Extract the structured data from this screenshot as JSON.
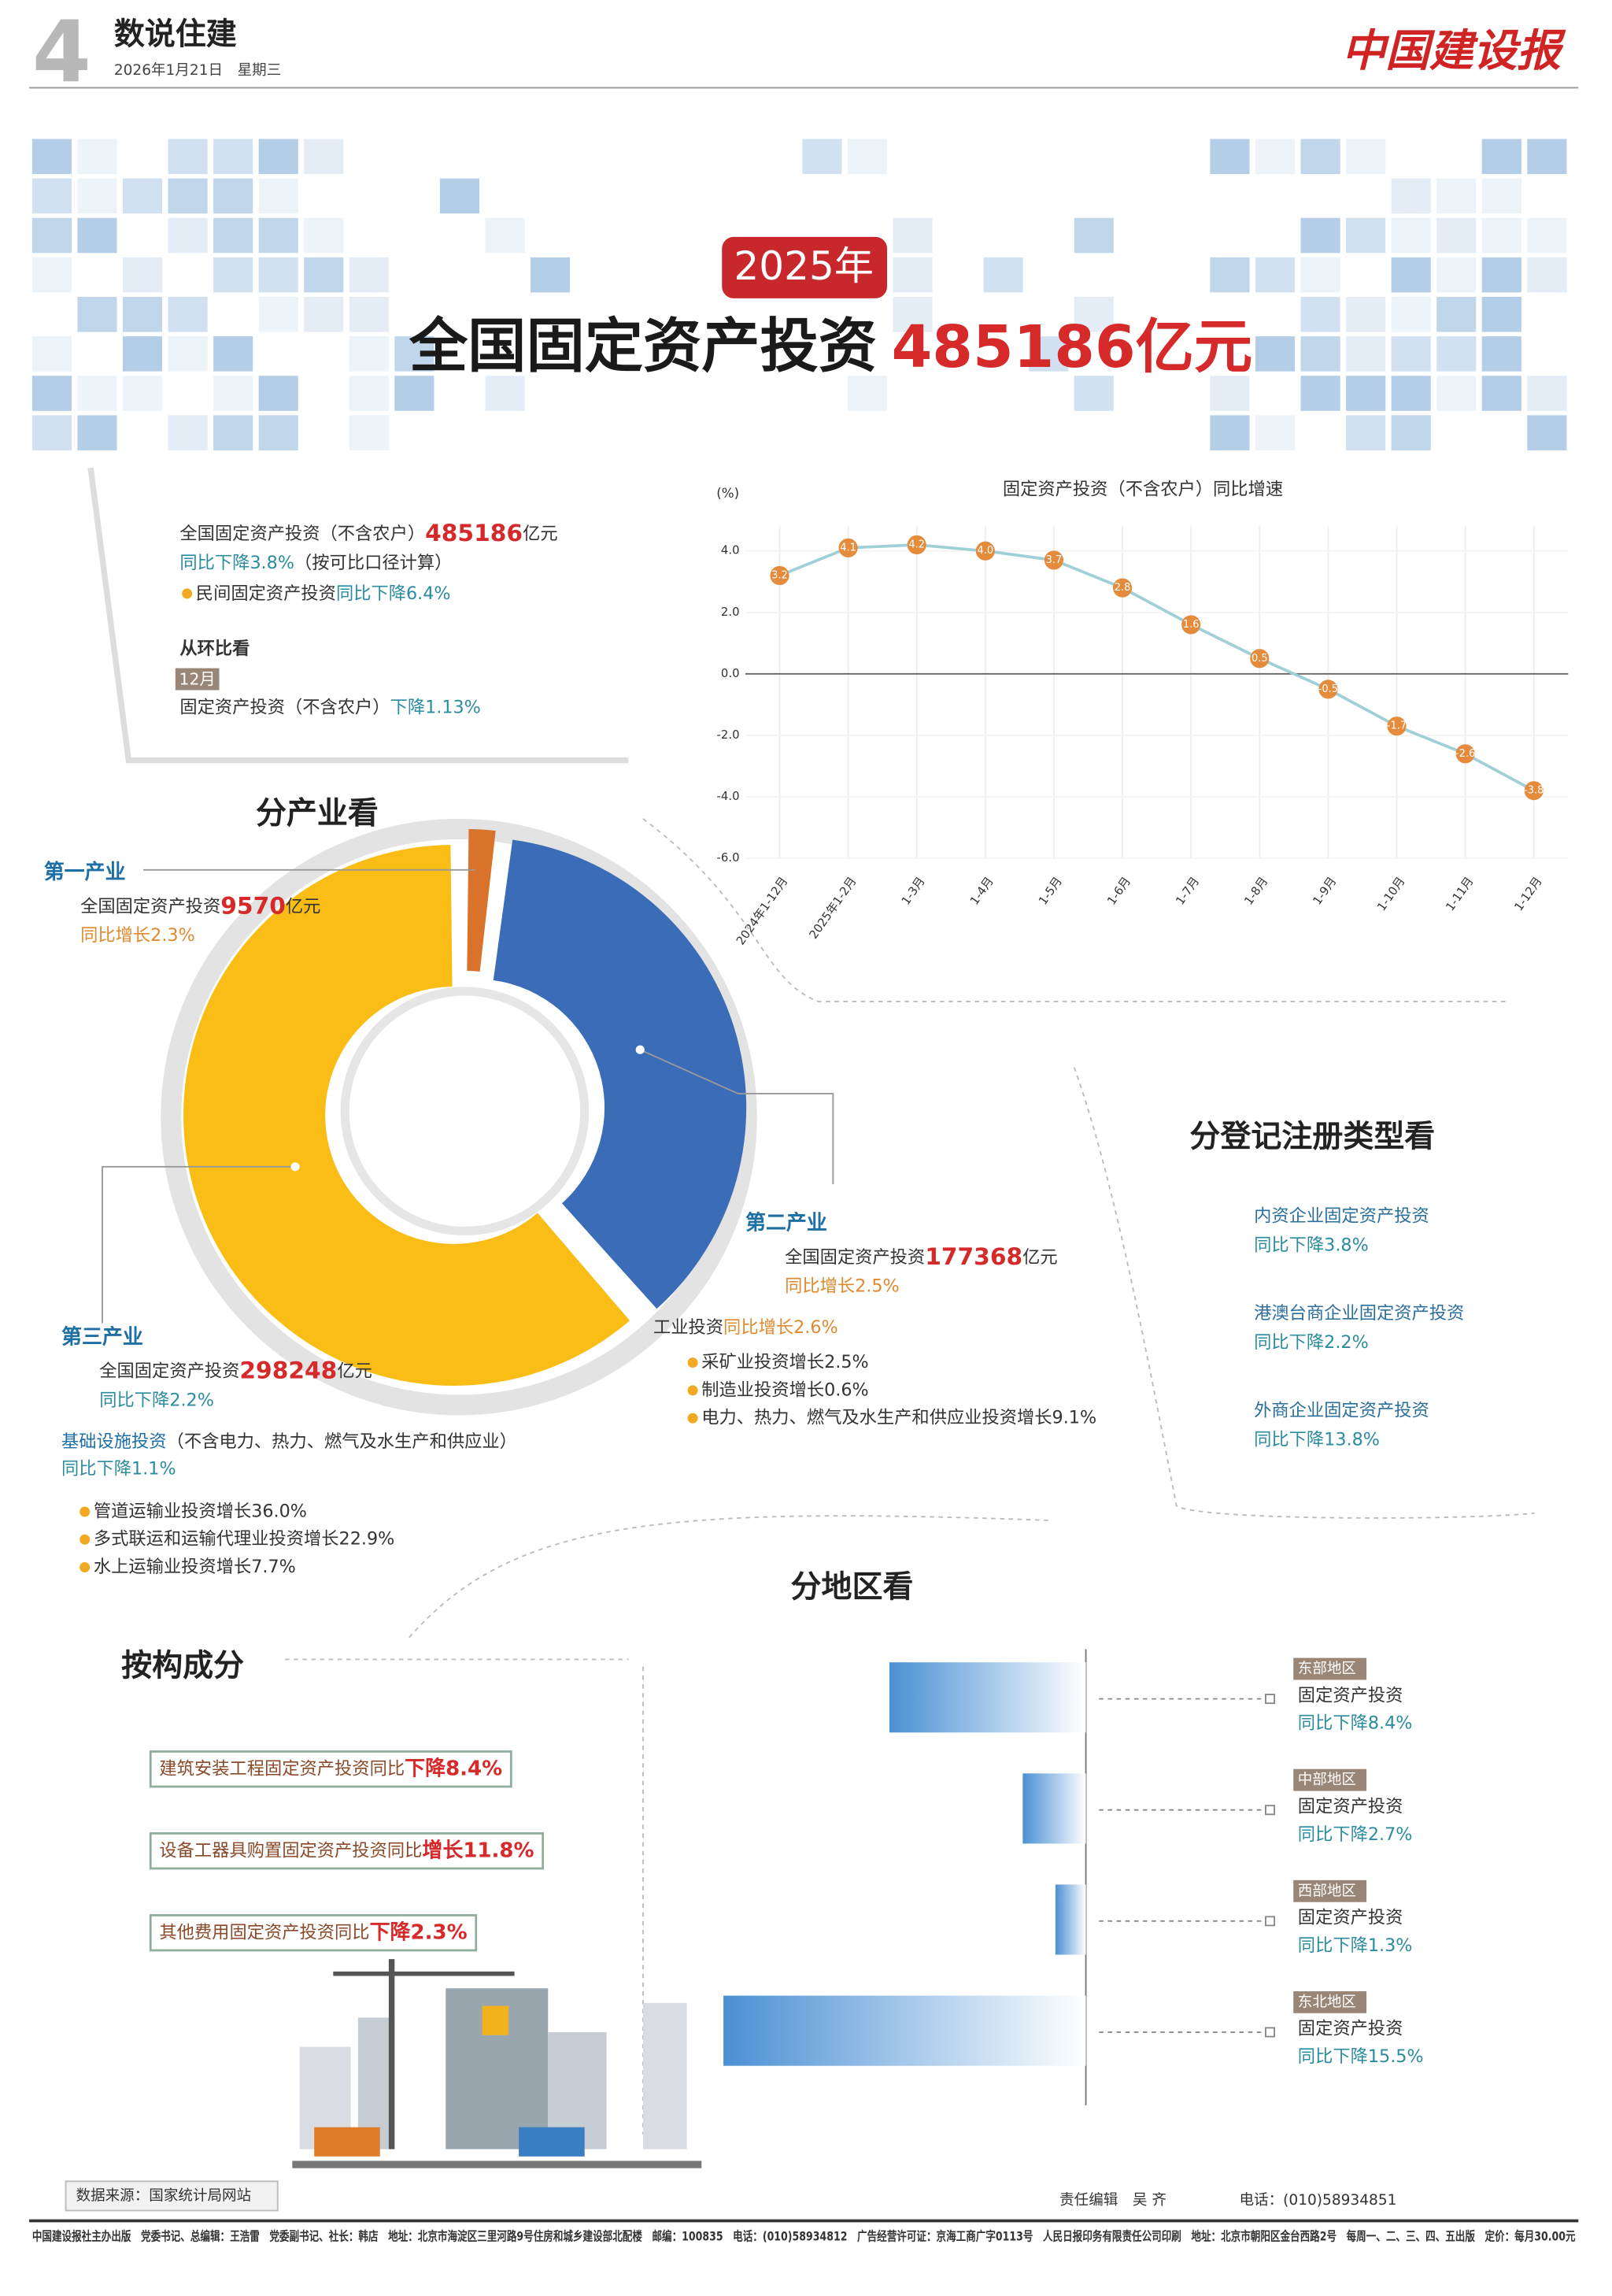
{
  "header": {
    "page_number": "4",
    "section": "数说住建",
    "date": "2026年1月21日",
    "weekday": "星期三",
    "masthead": "中国建设报"
  },
  "banner": {
    "year": "2025年",
    "title": "全国固定资产投资",
    "amount": "485186亿元"
  },
  "summary": {
    "total_label": "全国固定资产投资（不含农户）",
    "total_value": "485186",
    "total_unit": "亿元",
    "total_change": "同比下降3.8%",
    "total_note": "（按可比口径计算）",
    "private_label": "民间固定资产投资",
    "private_change": "同比下降6.4%",
    "mom_heading": "从环比看",
    "mom_month": "12月",
    "mom_label": "固定资产投资（不含农户）",
    "mom_change": "下降1.13%"
  },
  "chart_data": [
    {
      "type": "line",
      "title": "固定资产投资（不含农户）同比增速",
      "y_label": "(%)",
      "categories": [
        "2024年1-12月",
        "2025年1-2月",
        "1-3月",
        "1-4月",
        "1-5月",
        "1-6月",
        "1-7月",
        "1-8月",
        "1-9月",
        "1-10月",
        "1-11月",
        "1-12月"
      ],
      "values": [
        3.2,
        4.1,
        4.2,
        4.0,
        3.7,
        2.8,
        1.6,
        0.5,
        -0.5,
        -1.7,
        -2.6,
        -3.8
      ],
      "value_labels": [
        "3.2",
        "4.1",
        "4.2",
        "4.0",
        "3.7",
        "2.8",
        "1.6",
        "0.5",
        "-0.5",
        "-1.7",
        "-2.6",
        "-3.8"
      ],
      "color": "#9fd0d8",
      "marker_color": "#e48b3c",
      "ylim": [
        -6,
        4.8
      ],
      "yticks": [
        {
          "value": -6,
          "label": "-6.0"
        },
        {
          "value": -4,
          "label": "-4.0"
        },
        {
          "value": -2,
          "label": "-2.0"
        },
        {
          "value": 0,
          "label": "0.0"
        },
        {
          "value": 2,
          "label": "2.0"
        },
        {
          "value": 4,
          "label": "4.0"
        }
      ]
    },
    {
      "type": "pie",
      "categories": [
        "第一产业",
        "第二产业",
        "第三产业"
      ],
      "values": [
        9570,
        177368,
        298248
      ],
      "colors": [
        "#d9722a",
        "#3a6cb8",
        "#f9bd16"
      ]
    },
    {
      "type": "bar",
      "orientation": "horizontal",
      "categories": [
        "东部地区",
        "中部地区",
        "西部地区",
        "东北地区"
      ],
      "values": [
        -8.4,
        -2.7,
        -1.3,
        -15.5
      ],
      "value_labels": [
        "同比下降8.4%",
        "同比下降2.7%",
        "同比下降1.3%",
        "同比下降15.5%"
      ],
      "color": "#4a90d4",
      "xlim": [
        -16,
        0
      ]
    }
  ],
  "industries": {
    "heading": "分产业看",
    "label_prefix": "全国固定资产投资",
    "unit": "亿元",
    "primary_change": "同比增长2.3%",
    "secondary_change": "同比增长2.5%",
    "tertiary_change": "同比下降2.2%",
    "industrial_label": "工业投资",
    "industrial_change": "同比增长2.6%",
    "industrial_items": [
      "采矿业投资增长2.5%",
      "制造业投资增长0.6%",
      "电力、热力、燃气及水生产和供应业投资增长9.1%"
    ],
    "infra_label": "基础设施投资",
    "infra_note": "（不含电力、热力、燃气及水生产和供应业）",
    "infra_change": "同比下降1.1%",
    "infra_items": [
      "管道运输业投资增长36.0%",
      "多式联运和运输代理业投资增长22.9%",
      "水上运输业投资增长7.7%"
    ]
  },
  "registration": {
    "heading": "分登记注册类型看",
    "items": [
      {
        "label": "内资企业固定资产投资",
        "change": "同比下降3.8%"
      },
      {
        "label": "港澳台商企业固定资产投资",
        "change": "同比下降2.2%"
      },
      {
        "label": "外商企业固定资产投资",
        "change": "同比下降13.8%"
      }
    ]
  },
  "composition": {
    "heading": "按构成分",
    "items": [
      {
        "label": "建筑安装工程固定资产投资同比",
        "change": "下降8.4%"
      },
      {
        "label": "设备工器具购置固定资产投资同比",
        "change": "增长11.8%"
      },
      {
        "label": "其他费用固定资产投资同比",
        "change": "下降2.3%"
      }
    ]
  },
  "region": {
    "heading": "分地区看",
    "item_label": "固定资产投资"
  },
  "footer": {
    "source": "数据来源：国家统计局网站",
    "editor": "责任编辑　吴 齐",
    "phone": "电话：(010)58934851",
    "imprint": "中国建设报社主办出版　党委书记、总编辑：王浩雷　党委副书记、社长：韩店　地址：北京市海淀区三里河路9号住房和城乡建设部北配楼　邮编：100835　电话：(010)58934812　广告经营许可证：京海工商广字0113号　人民日报印务有限责任公司印刷　地址：北京市朝阳区金台西路2号　每周一、二、三、四、五出版　定价：每月30.00元"
  }
}
